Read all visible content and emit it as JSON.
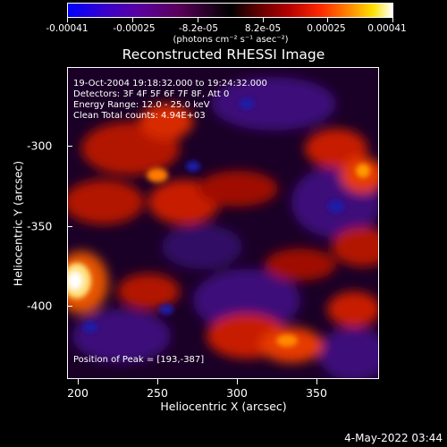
{
  "colorbar": {
    "labels": [
      "-0.00041",
      "-0.00025",
      "-8.2e-05",
      "8.2e-05",
      "0.00025",
      "0.00041"
    ],
    "unit": "(photons cm⁻² s⁻¹ asec⁻²)",
    "colors": [
      "#0000ff",
      "#5a00a0",
      "#000000",
      "#b40000",
      "#ff8c00",
      "#ffffff"
    ]
  },
  "title": "Reconstructed RHESSI Image",
  "info": {
    "time": "19-Oct-2004 19:18:32.000 to 19:24:32.000",
    "detectors": "Detectors: 3F 4F 5F 6F 7F 8F, Att 0",
    "energy": "Energy Range: 12.0 - 25.0 keV",
    "clean": "Clean    Total counts: 4.94E+03",
    "peak": "Position of Peak = [193,-387]"
  },
  "axes": {
    "xlabel": "Heliocentric X (arcsec)",
    "ylabel": "Heliocentric Y (arcsec)",
    "xticks": [
      "200",
      "250",
      "300",
      "350"
    ],
    "yticks": [
      "-300",
      "-350",
      "-400"
    ]
  },
  "footer": "4-May-2022 03:44"
}
